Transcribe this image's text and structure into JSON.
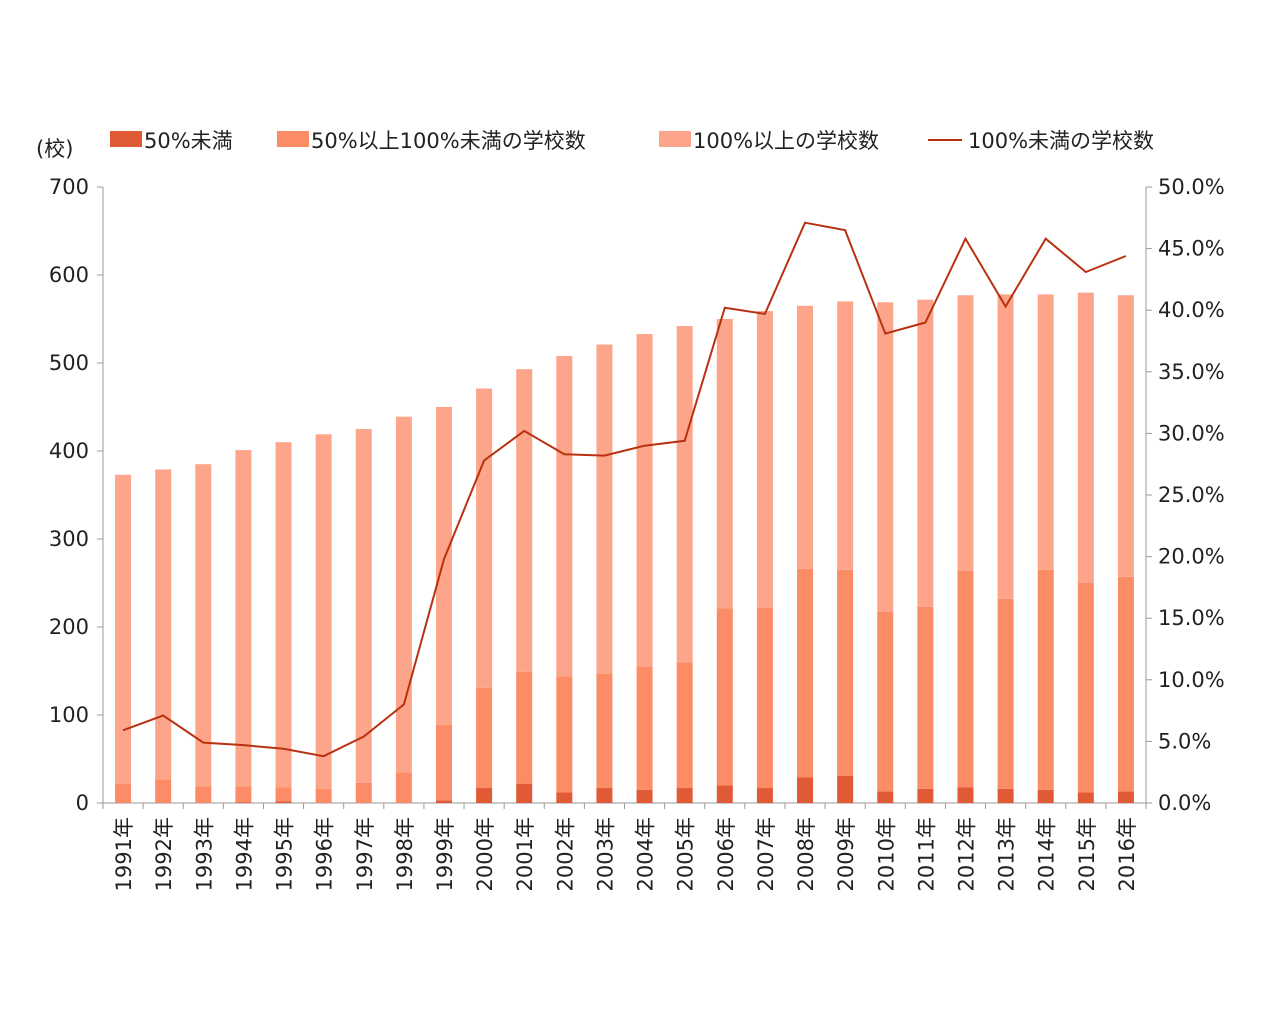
{
  "chart_data": {
    "type": "bar",
    "stacked": true,
    "y_unit_label": "(校)",
    "categories": [
      "1991年",
      "1992年",
      "1993年",
      "1994年",
      "1995年",
      "1996年",
      "1997年",
      "1998年",
      "1999年",
      "2000年",
      "2001年",
      "2002年",
      "2003年",
      "2004年",
      "2005年",
      "2006年",
      "2007年",
      "2008年",
      "2009年",
      "2010年",
      "2011年",
      "2012年",
      "2013年",
      "2014年",
      "2015年",
      "2016年"
    ],
    "series": [
      {
        "name": "50%未満",
        "type": "bar",
        "axis": "left",
        "color": "#e05a35",
        "values": [
          0,
          0,
          0,
          1,
          2,
          0,
          0,
          0,
          3,
          17,
          22,
          12,
          17,
          15,
          17,
          20,
          17,
          29,
          31,
          13,
          16,
          18,
          16,
          15,
          12,
          13
        ]
      },
      {
        "name": "50%以上100%未満の学校数",
        "type": "bar",
        "axis": "left",
        "color": "#fc8c66",
        "values": [
          22,
          27,
          19,
          18,
          16,
          16,
          23,
          35,
          86,
          114,
          127,
          132,
          130,
          140,
          143,
          201,
          205,
          237,
          234,
          204,
          207,
          246,
          216,
          250,
          238,
          244
        ]
      },
      {
        "name": "100%以上の学校数",
        "type": "bar",
        "axis": "left",
        "color": "#fda58a",
        "values": [
          351,
          352,
          366,
          382,
          392,
          403,
          402,
          404,
          361,
          340,
          344,
          364,
          374,
          378,
          382,
          329,
          337,
          299,
          305,
          352,
          349,
          313,
          346,
          313,
          330,
          320
        ]
      },
      {
        "name": "100%未満の学校数",
        "type": "line",
        "axis": "right",
        "color": "#b83212",
        "values": [
          5.9,
          7.1,
          4.9,
          4.7,
          4.4,
          3.8,
          5.4,
          8.0,
          19.8,
          27.8,
          30.2,
          28.3,
          28.2,
          29.0,
          29.4,
          40.2,
          39.7,
          47.1,
          46.5,
          38.1,
          39.0,
          45.8,
          40.3,
          45.8,
          43.1,
          44.4
        ]
      }
    ],
    "y_left": {
      "min": 0,
      "max": 700,
      "ticks": [
        "0",
        "100",
        "200",
        "300",
        "400",
        "500",
        "600",
        "700"
      ]
    },
    "y_right": {
      "min": 0,
      "max": 50,
      "ticks": [
        "0.0%",
        "5.0%",
        "10.0%",
        "15.0%",
        "20.0%",
        "25.0%",
        "30.0%",
        "35.0%",
        "40.0%",
        "45.0%",
        "50.0%"
      ]
    },
    "grid": false,
    "legend_position": "top"
  }
}
